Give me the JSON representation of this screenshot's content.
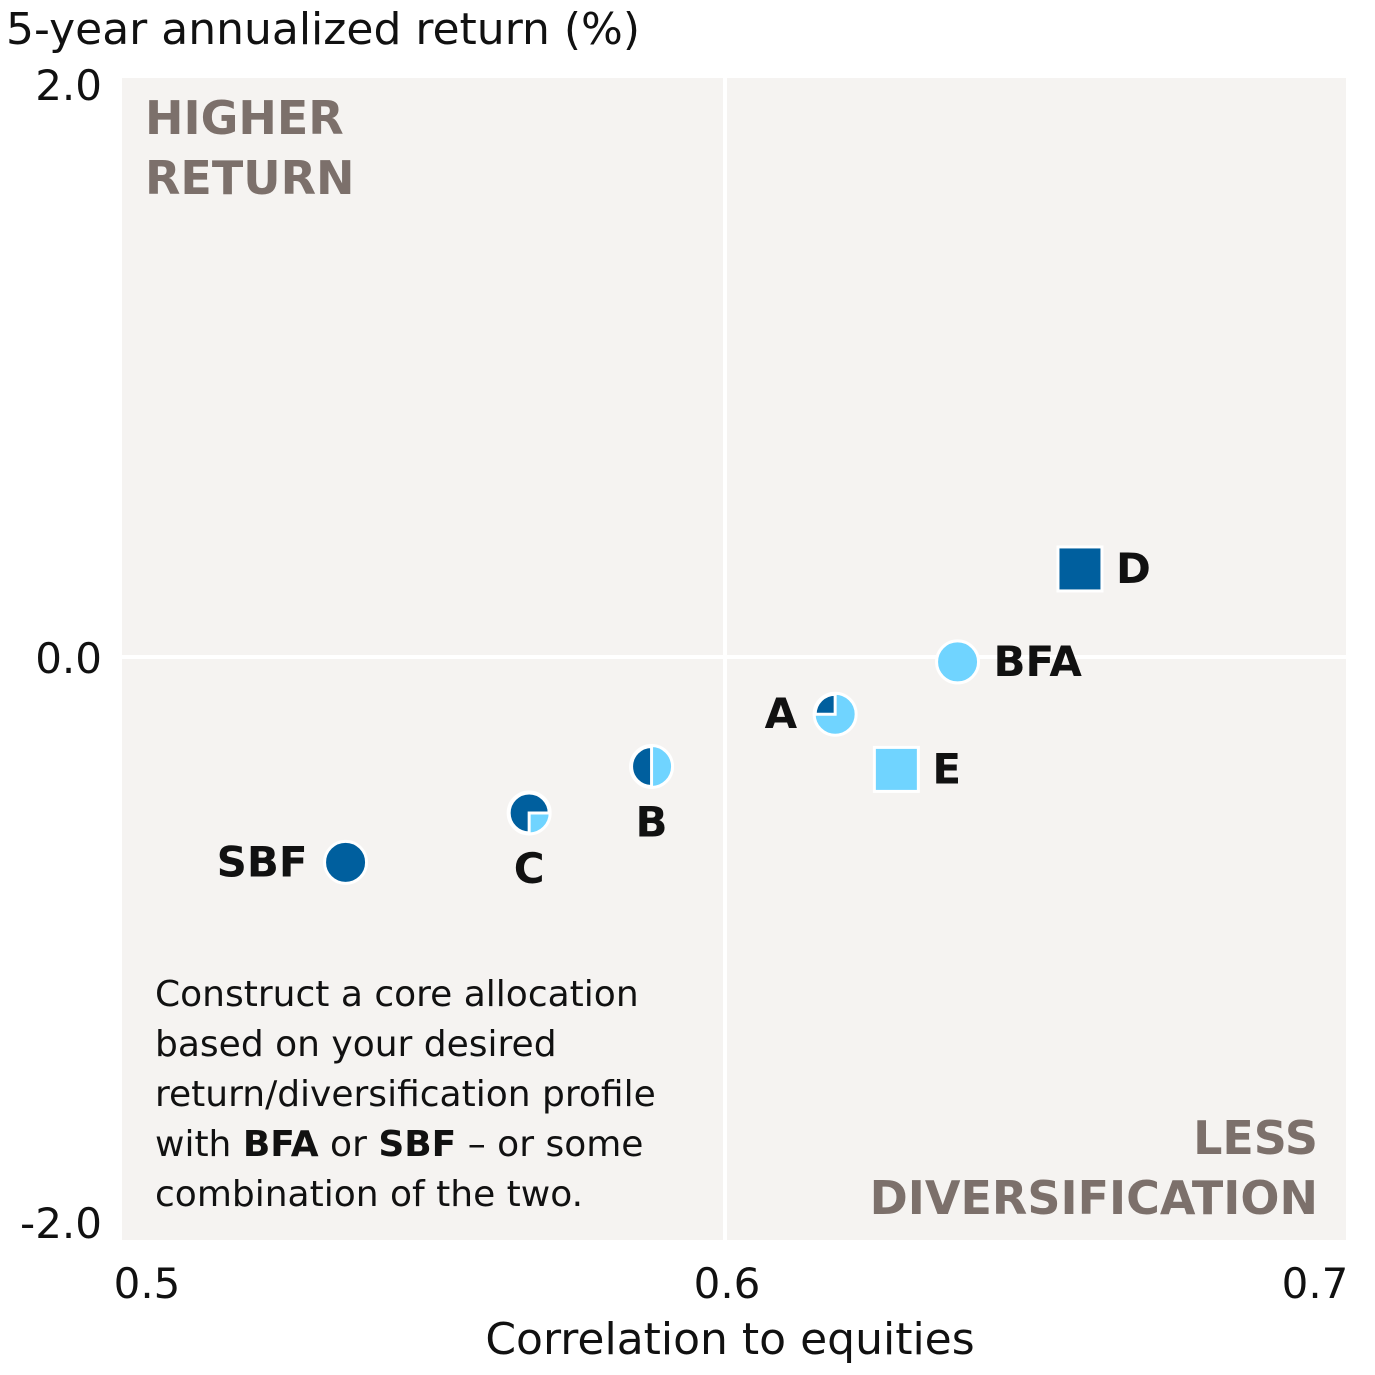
{
  "chart_data": {
    "type": "scatter",
    "ylabel": "5-year annualized return (%)",
    "xlabel": "Correlation to equities",
    "xlim": [
      0.5,
      0.7
    ],
    "ylim": [
      -2.0,
      2.0
    ],
    "x_ticks": [
      "0.5",
      "0.6",
      "0.7"
    ],
    "y_ticks": [
      "2.0",
      "0.0",
      "-2.0"
    ],
    "grid": false,
    "quadrant_lines": {
      "x": 0.6,
      "y": 0.0
    },
    "corner_labels": {
      "top_left": [
        "HIGHER",
        "RETURN"
      ],
      "bottom_right": [
        "LESS",
        "DIVERSIFICATION"
      ]
    },
    "colors": {
      "dark": "#005f9e",
      "light": "#70d4ff",
      "background": "#f5f3f1",
      "corner_text": "#7c706b"
    },
    "points": [
      {
        "label": "SBF",
        "x": 0.538,
        "y": -0.7,
        "marker": "circle",
        "dark_share": 1.0,
        "label_pos": "left"
      },
      {
        "label": "C",
        "x": 0.568,
        "y": -0.53,
        "marker": "circle",
        "dark_share": 0.75,
        "label_pos": "below"
      },
      {
        "label": "B",
        "x": 0.588,
        "y": -0.37,
        "marker": "circle",
        "dark_share": 0.5,
        "label_pos": "below"
      },
      {
        "label": "A",
        "x": 0.618,
        "y": -0.19,
        "marker": "circle",
        "dark_share": 0.25,
        "label_pos": "left"
      },
      {
        "label": "E",
        "x": 0.628,
        "y": -0.38,
        "marker": "square",
        "dark_share": 0.0,
        "label_pos": "right"
      },
      {
        "label": "BFA",
        "x": 0.638,
        "y": -0.01,
        "marker": "circle",
        "dark_share": 0.0,
        "label_pos": "right"
      },
      {
        "label": "D",
        "x": 0.658,
        "y": 0.31,
        "marker": "square",
        "dark_share": 1.0,
        "label_pos": "right"
      }
    ],
    "annotation": {
      "lines": [
        [
          {
            "t": "Construct a core allocation",
            "b": false
          }
        ],
        [
          {
            "t": "based on your desired",
            "b": false
          }
        ],
        [
          {
            "t": "return/diversification profile",
            "b": false
          }
        ],
        [
          {
            "t": "with ",
            "b": false
          },
          {
            "t": "BFA",
            "b": true
          },
          {
            "t": " or ",
            "b": false
          },
          {
            "t": "SBF",
            "b": true
          },
          {
            "t": " – or some",
            "b": false
          }
        ],
        [
          {
            "t": "combination of the two.",
            "b": false
          }
        ]
      ]
    }
  }
}
